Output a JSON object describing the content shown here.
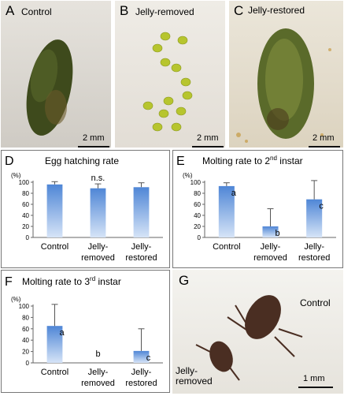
{
  "photos": [
    {
      "letter": "A",
      "title": "Control",
      "scale": "2 mm"
    },
    {
      "letter": "B",
      "title": "Jelly-removed",
      "scale": "2 mm"
    },
    {
      "letter": "C",
      "title": "Jelly-restored",
      "scale": "2 mm"
    },
    {
      "letter": "G",
      "title": "Control",
      "title2": "Jelly-\nremoved",
      "scale": "1 mm"
    }
  ],
  "chart_data": [
    {
      "letter": "D",
      "type": "bar",
      "title": "Egg hatching rate",
      "ylabel": "(%)",
      "ylim": [
        0,
        100
      ],
      "yticks": [
        0,
        20,
        40,
        60,
        80,
        100
      ],
      "categories": [
        "Control",
        "Jelly-\nremoved",
        "Jelly-\nrestored"
      ],
      "values": [
        96,
        89,
        91
      ],
      "errors": [
        5,
        8,
        8
      ],
      "labels": [
        "",
        "n.s.",
        ""
      ],
      "bar_color": "#4f86d6",
      "grid": false
    },
    {
      "letter": "E",
      "type": "bar",
      "title": "Molting rate to 2nd instar",
      "title_main": "Molting rate to 2",
      "title_sup": "nd",
      "title_tail": " instar",
      "ylabel": "(%)",
      "ylim": [
        0,
        100
      ],
      "yticks": [
        0,
        20,
        40,
        60,
        80,
        100
      ],
      "categories": [
        "Control",
        "Jelly-\nremoved",
        "Jelly-\nrestored"
      ],
      "values": [
        93,
        20,
        69
      ],
      "errors": [
        6,
        32,
        34
      ],
      "labels": [
        "a",
        "b",
        "c"
      ],
      "bar_color": "#4f86d6",
      "grid": false
    },
    {
      "letter": "F",
      "type": "bar",
      "title": "Molting rate to 3rd instar",
      "title_main": "Molting rate to 3",
      "title_sup": "rd",
      "title_tail": " instar",
      "ylabel": "(%)",
      "ylim": [
        0,
        100
      ],
      "yticks": [
        0,
        20,
        40,
        60,
        80,
        100
      ],
      "categories": [
        "Control",
        "Jelly-\nremoved",
        "Jelly-\nrestored"
      ],
      "values": [
        65,
        0,
        21
      ],
      "errors": [
        38,
        0,
        39
      ],
      "labels": [
        "a",
        "b",
        "c"
      ],
      "bar_color": "#4f86d6",
      "grid": false
    }
  ]
}
